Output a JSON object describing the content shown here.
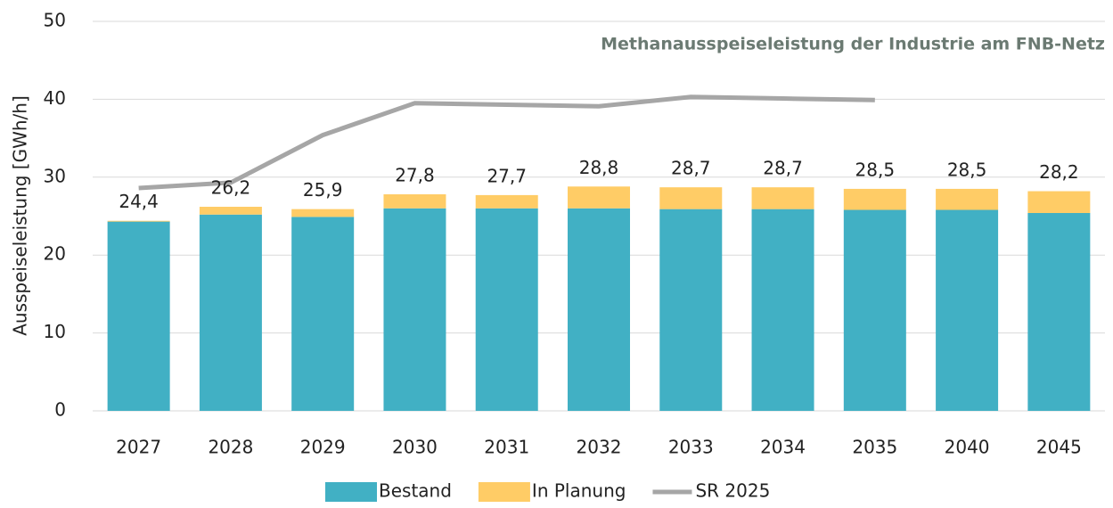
{
  "chart_data": {
    "type": "bar",
    "title": "Methanausspeiseleistung der Industrie am FNB-Netz",
    "ylabel": "Ausspeiseleistung [GWh/h]",
    "stacked": true,
    "categories": [
      "2027",
      "2028",
      "2029",
      "2030",
      "2031",
      "2032",
      "2033",
      "2034",
      "2035",
      "2040",
      "2045"
    ],
    "series": [
      {
        "name": "Bestand",
        "type": "bar",
        "color": "#41b0c4",
        "values": [
          24.3,
          25.2,
          24.9,
          26.0,
          26.0,
          26.0,
          25.9,
          25.9,
          25.8,
          25.8,
          25.4
        ]
      },
      {
        "name": "In Planung",
        "type": "bar",
        "color": "#ffcc66",
        "values": [
          0.1,
          1.0,
          1.0,
          1.8,
          1.7,
          2.8,
          2.8,
          2.8,
          2.7,
          2.7,
          2.8
        ]
      },
      {
        "name": "SR 2025",
        "type": "line",
        "color": "#a6a6a6",
        "values": [
          28.6,
          29.3,
          35.4,
          39.5,
          39.3,
          39.1,
          40.3,
          40.1,
          39.9,
          null,
          null
        ]
      }
    ],
    "totals": {
      "values": [
        24.4,
        26.2,
        25.9,
        27.8,
        27.7,
        28.8,
        28.7,
        28.7,
        28.5,
        28.5,
        28.2
      ],
      "value_labels": [
        "24,4",
        "26,2",
        "25,9",
        "27,8",
        "27,7",
        "28,8",
        "28,7",
        "28,7",
        "28,5",
        "28,5",
        "28,2"
      ]
    },
    "ylim": [
      0,
      50
    ],
    "yticks": [
      0,
      10,
      20,
      30,
      40,
      50
    ],
    "grid": true,
    "legend": "bottom"
  }
}
